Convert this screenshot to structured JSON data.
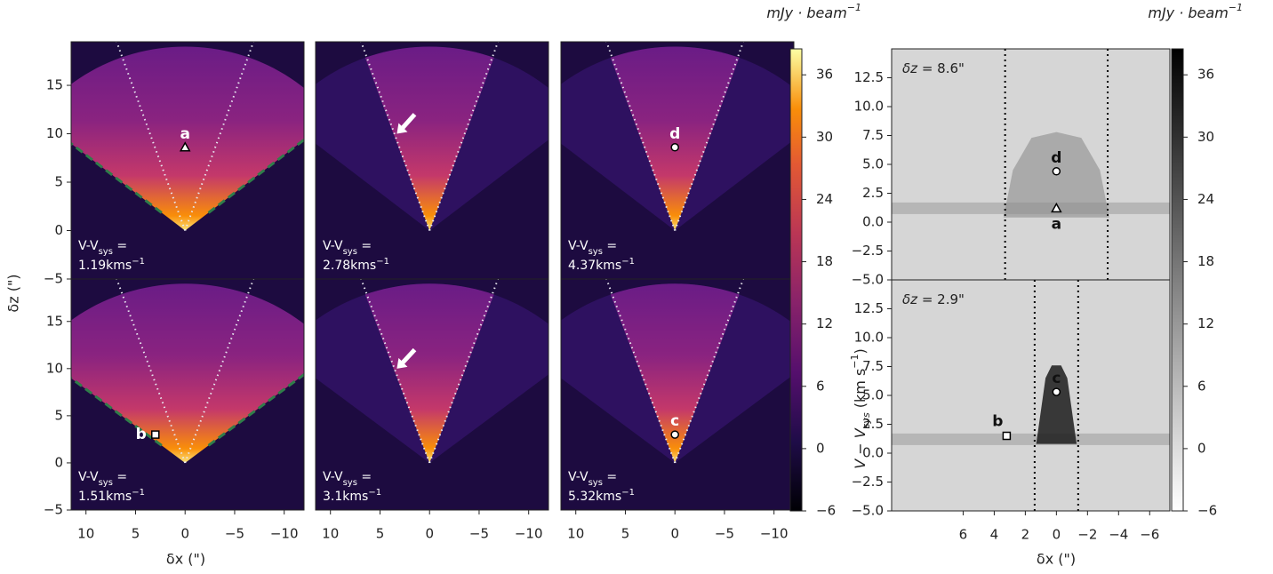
{
  "chart_data": [
    {
      "type": "channel-maps",
      "x_label": "δx (\")",
      "y_label": "δz (\")",
      "xlim": [
        11.5,
        -12
      ],
      "ylim": [
        -5,
        19.5
      ],
      "xticks": [
        10,
        5,
        0,
        {
          "value": -5,
          "label": "−5"
        },
        {
          "value": -10,
          "label": "−10"
        }
      ],
      "yticks": [
        {
          "value": -5,
          "label": "−5"
        },
        0,
        5,
        10,
        15
      ],
      "velocity_label": {
        "main": "V-V",
        "sub": "sys",
        "eq": " =",
        "unit": "kms",
        "unit_sup": "−1"
      },
      "channels": [
        {
          "velocity": 1.19,
          "cone": "wide",
          "arrow": false,
          "markers": [
            {
              "label": "a",
              "shape": "triangle",
              "x": 0,
              "y": 8.6
            }
          ]
        },
        {
          "velocity": 2.78,
          "cone": "narrow",
          "arrow": true,
          "markers": []
        },
        {
          "velocity": 4.37,
          "cone": "narrow",
          "arrow": false,
          "markers": [
            {
              "label": "d",
              "shape": "circle",
              "x": 0,
              "y": 8.6
            }
          ]
        },
        {
          "velocity": 1.51,
          "cone": "wide",
          "arrow": false,
          "markers": [
            {
              "label": "b",
              "shape": "square",
              "x": 3,
              "y": 3
            }
          ]
        },
        {
          "velocity": 3.1,
          "cone": "narrow",
          "arrow": true,
          "markers": []
        },
        {
          "velocity": 5.32,
          "cone": "narrow",
          "arrow": false,
          "markers": [
            {
              "label": "c",
              "shape": "circle",
              "x": 0,
              "y": 3
            }
          ]
        }
      ]
    },
    {
      "type": "colorbar",
      "colormap": "inferno",
      "label": "mJy · beam",
      "label_sup": "−1",
      "ylim": [
        -6,
        38.5
      ],
      "yticks": [
        {
          "value": -6,
          "label": "−6"
        },
        0,
        6,
        12,
        18,
        24,
        30,
        36
      ]
    },
    {
      "type": "pv-diagrams",
      "x_label": "δx (\")",
      "y_label": {
        "main": "V − V",
        "sub": "sys",
        "unit": " (km s",
        "sup": "−1",
        "end": ")"
      },
      "xlim": [
        10.6,
        -7.3
      ],
      "ylim": [
        -5,
        15
      ],
      "xticks": [
        6,
        4,
        2,
        0,
        {
          "value": -2,
          "label": "−2"
        },
        {
          "value": -4,
          "label": "−4"
        },
        {
          "value": -6,
          "label": "−6"
        }
      ],
      "yticks": [
        {
          "value": -5,
          "label": "−5.0"
        },
        {
          "value": -2.5,
          "label": "−2.5"
        },
        {
          "value": 0,
          "label": "0.0"
        },
        2.5,
        {
          "value": 5,
          "label": "5.0"
        },
        7.5,
        {
          "value": 10,
          "label": "10.0"
        },
        12.5
      ],
      "panels": [
        {
          "offset_label": "δz = ",
          "offset": 8.6,
          "offset_unit": "\"",
          "cone_edges": [
            3.3,
            -3.3
          ],
          "markers": [
            {
              "label": "d",
              "shape": "circle",
              "x": 0,
              "y": 4.4
            },
            {
              "label": "a",
              "shape": "triangle",
              "x": 0,
              "y": 1.2,
              "label_side": "below"
            }
          ]
        },
        {
          "offset_label": "δz = ",
          "offset": 2.9,
          "offset_unit": "\"",
          "cone_edges": [
            1.4,
            -1.4
          ],
          "markers": [
            {
              "label": "c",
              "shape": "circle",
              "x": 0,
              "y": 5.3
            },
            {
              "label": "b",
              "shape": "square",
              "x": 3.2,
              "y": 1.5
            }
          ]
        }
      ]
    },
    {
      "type": "colorbar",
      "colormap": "gray_r",
      "label": "mJy · beam",
      "label_sup": "−1",
      "ylim": [
        -6,
        38.5
      ],
      "yticks": [
        {
          "value": -6,
          "label": "−6"
        },
        0,
        6,
        12,
        18,
        24,
        30,
        36
      ]
    }
  ]
}
